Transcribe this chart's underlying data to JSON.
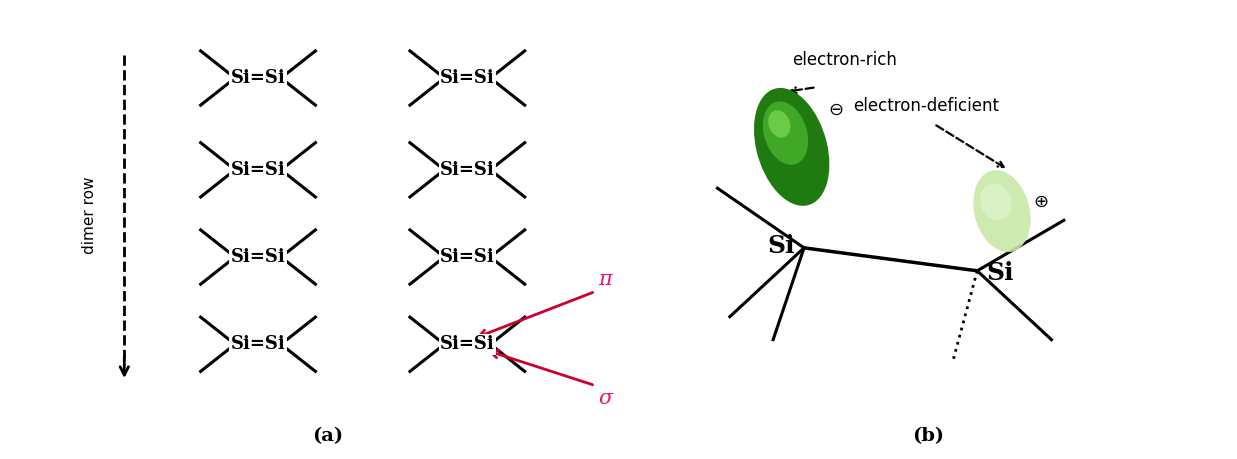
{
  "fig_width": 12.37,
  "fig_height": 4.59,
  "bg_color": "#ffffff",
  "label_a": "(a)",
  "label_b": "(b)",
  "dimer_row_label": "dimer row",
  "pi_label": "π",
  "sigma_label": "σ",
  "electron_rich_label": "electron-rich",
  "electron_deficient_label": "electron-deficient",
  "minus_symbol": "⊖",
  "plus_symbol": "⊕",
  "arrow_color": "#cc0033",
  "pink_color": "#ee1177",
  "green_dark": "#2a8a1a",
  "green_light": "#c8e8b8"
}
